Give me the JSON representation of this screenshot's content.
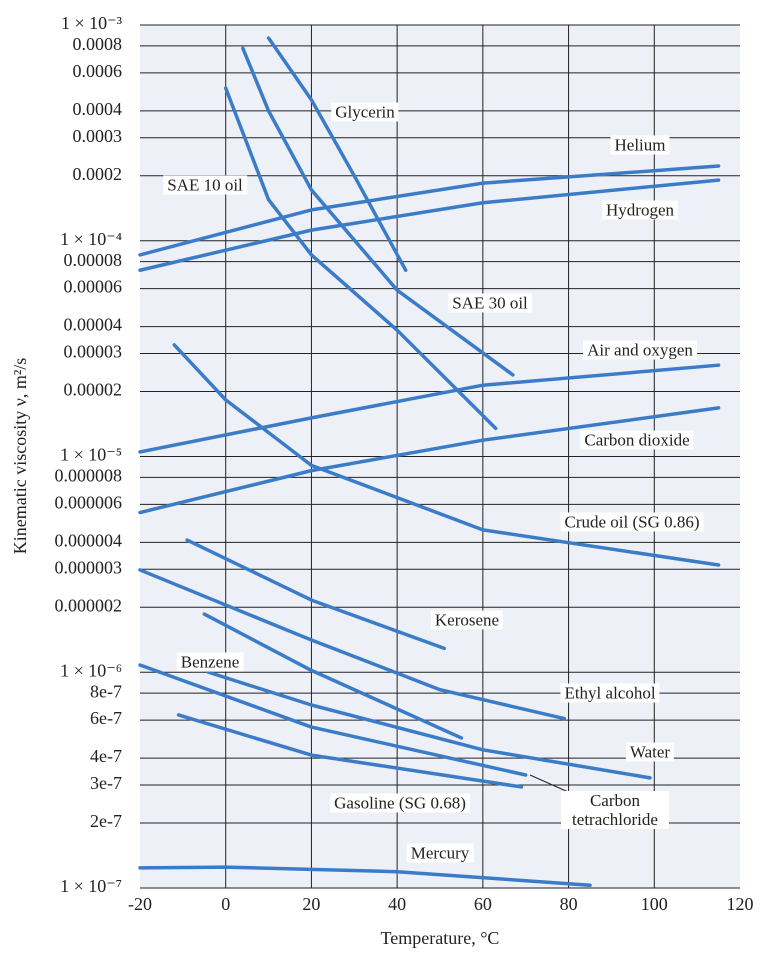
{
  "chart_data": {
    "type": "line",
    "x_label": "Temperature, °C",
    "y_label": "Kinematic viscosity ν, m²/s",
    "log_y": true,
    "grid": true,
    "xlim": [
      -20,
      120
    ],
    "ylim": [
      1e-07,
      0.001
    ],
    "xticks": [
      -20,
      0,
      20,
      40,
      60,
      80,
      100,
      120
    ],
    "yticks": [
      {
        "value": 0.001,
        "label": "1 × 10⁻³"
      },
      0.0008,
      0.0006,
      0.0004,
      0.0003,
      0.0002,
      {
        "value": 0.0001,
        "label": "1 × 10⁻⁴"
      },
      8e-05,
      6e-05,
      4e-05,
      3e-05,
      2e-05,
      {
        "value": 1e-05,
        "label": "1 × 10⁻⁵"
      },
      8e-06,
      6e-06,
      4e-06,
      3e-06,
      2e-06,
      {
        "value": 1e-06,
        "label": "1 × 10⁻⁶"
      },
      8e-07,
      6e-07,
      4e-07,
      3e-07,
      2e-07,
      {
        "value": 1e-07,
        "label": "1 × 10⁻⁷"
      }
    ],
    "color": "#3b7cc9",
    "series": [
      {
        "name": "Glycerin",
        "x": [
          10,
          20,
          30,
          42
        ],
        "values": [
          0.00087,
          0.00045,
          0.0002,
          7.3e-05
        ]
      },
      {
        "name": "SAE 10 oil",
        "x": [
          0,
          10,
          20,
          40,
          63
        ],
        "values": [
          0.00051,
          0.000155,
          8.6e-05,
          3.85e-05,
          1.35e-05
        ]
      },
      {
        "name": "SAE 30 oil",
        "x": [
          4,
          10,
          20,
          40,
          67
        ],
        "values": [
          0.00078,
          0.0004,
          0.000172,
          5.9e-05,
          2.39e-05
        ]
      },
      {
        "name": "Helium",
        "x": [
          -20,
          20,
          60,
          115
        ],
        "values": [
          8.6e-05,
          0.000139,
          0.000185,
          0.000222
        ]
      },
      {
        "name": "Hydrogen",
        "x": [
          -20,
          20,
          60,
          115
        ],
        "values": [
          7.3e-05,
          0.000112,
          0.00015,
          0.000191
        ]
      },
      {
        "name": "Air and oxygen",
        "x": [
          -20,
          20,
          60,
          115
        ],
        "values": [
          1.05e-05,
          1.51e-05,
          2.14e-05,
          2.65e-05
        ]
      },
      {
        "name": "Carbon dioxide",
        "x": [
          -20,
          20,
          60,
          115
        ],
        "values": [
          5.5e-06,
          8.6e-06,
          1.19e-05,
          1.68e-05
        ]
      },
      {
        "name": "Crude oil (SG 0.86)",
        "x": [
          -12,
          0,
          20,
          60,
          115
        ],
        "values": [
          3.29e-05,
          1.83e-05,
          9.1e-06,
          4.57e-06,
          3.14e-06
        ]
      },
      {
        "name": "Kerosene",
        "x": [
          -9,
          20,
          51
        ],
        "values": [
          4.1e-06,
          2.16e-06,
          1.29e-06
        ]
      },
      {
        "name": "Ethyl alcohol",
        "x": [
          -20,
          20,
          50,
          79
        ],
        "values": [
          2.98e-06,
          1.41e-06,
          8.3e-07,
          6.1e-07
        ]
      },
      {
        "name": "Benzene",
        "x": [
          -5,
          20,
          55
        ],
        "values": [
          1.86e-06,
          1.02e-06,
          4.96e-07
        ]
      },
      {
        "name": "Water",
        "x": [
          -4,
          20,
          60,
          99
        ],
        "values": [
          1e-06,
          7.05e-07,
          4.37e-07,
          3.24e-07
        ]
      },
      {
        "name": "Carbon tetrachloride",
        "x": [
          -20,
          20,
          70
        ],
        "values": [
          1.08e-06,
          5.57e-07,
          3.34e-07
        ]
      },
      {
        "name": "Gasoline (SG 0.68)",
        "x": [
          -11,
          20,
          69
        ],
        "values": [
          6.34e-07,
          4.13e-07,
          2.94e-07
        ]
      },
      {
        "name": "Mercury",
        "x": [
          -20,
          0,
          40,
          85
        ],
        "values": [
          1.24e-07,
          1.25e-07,
          1.19e-07,
          1.03e-07
        ]
      }
    ]
  }
}
